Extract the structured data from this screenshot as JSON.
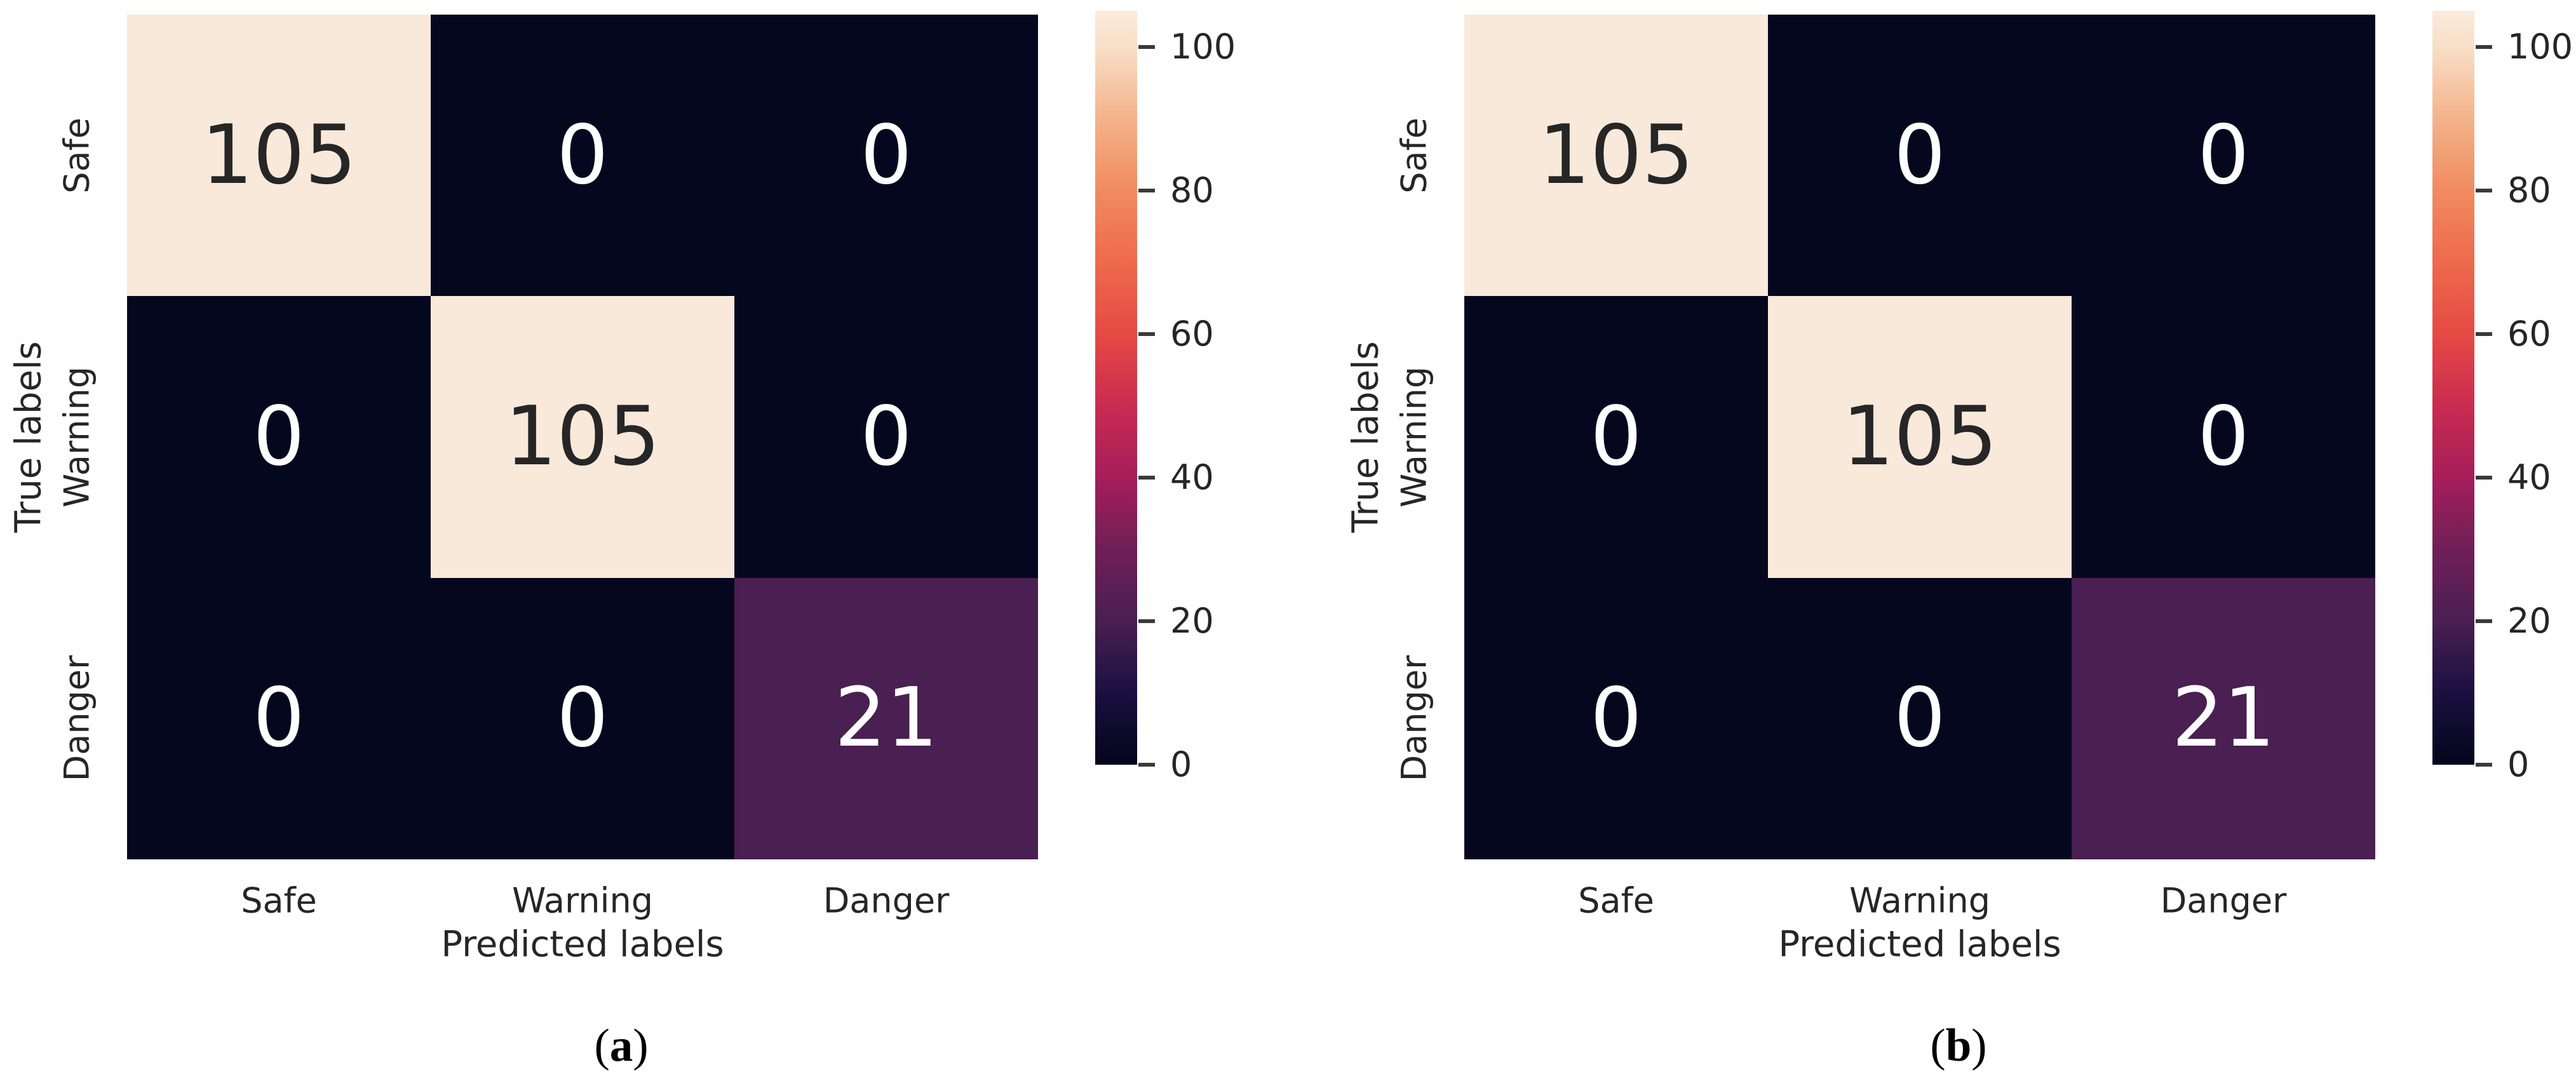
{
  "styles": {
    "background": "#ffffff",
    "label_color": "#262626",
    "tick_mark_color": "#3a3a3a",
    "annot_dark_text": "#262626",
    "annot_light_text": "#ffffff"
  },
  "chart_data": [
    {
      "type": "heatmap",
      "panel": "a",
      "caption": {
        "pre": "(",
        "letter": "a",
        "post": ")"
      },
      "x_categories": [
        "Safe",
        "Warning",
        "Danger"
      ],
      "y_categories": [
        "Safe",
        "Warning",
        "Danger"
      ],
      "xlabel": "Predicted labels",
      "ylabel": "True labels",
      "values": [
        [
          105,
          0,
          0
        ],
        [
          0,
          105,
          0
        ],
        [
          0,
          0,
          21
        ]
      ],
      "vmin": 0,
      "vmax": 105,
      "colorbar_ticks": [
        0,
        20,
        40,
        60,
        80,
        100
      ],
      "colormap": "rocket",
      "cell_colors": [
        [
          "#f8e9da",
          "#05071e",
          "#05071e"
        ],
        [
          "#05071e",
          "#f8e9da",
          "#05071e"
        ],
        [
          "#05071e",
          "#05071e",
          "#4a1f52"
        ]
      ],
      "annot_text_colors": [
        [
          "#262626",
          "#ffffff",
          "#ffffff"
        ],
        [
          "#ffffff",
          "#262626",
          "#ffffff"
        ],
        [
          "#ffffff",
          "#ffffff",
          "#ffffff"
        ]
      ],
      "colormap_stops": [
        {
          "v": 0,
          "hex": "#03051a"
        },
        {
          "v": 10,
          "hex": "#1a1040"
        },
        {
          "v": 20,
          "hex": "#4a1f52"
        },
        {
          "v": 30,
          "hex": "#701f57"
        },
        {
          "v": 40,
          "hex": "#a51e5a"
        },
        {
          "v": 50,
          "hex": "#ca2b51"
        },
        {
          "v": 60,
          "hex": "#e54a43"
        },
        {
          "v": 70,
          "hex": "#ee6a4c"
        },
        {
          "v": 80,
          "hex": "#f18b60"
        },
        {
          "v": 90,
          "hex": "#f4b38a"
        },
        {
          "v": 100,
          "hex": "#f8dfc7"
        },
        {
          "v": 105,
          "hex": "#faebdd"
        }
      ]
    },
    {
      "type": "heatmap",
      "panel": "b",
      "caption": {
        "pre": "(",
        "letter": "b",
        "post": ")"
      },
      "x_categories": [
        "Safe",
        "Warning",
        "Danger"
      ],
      "y_categories": [
        "Safe",
        "Warning",
        "Danger"
      ],
      "xlabel": "Predicted labels",
      "ylabel": "True labels",
      "values": [
        [
          105,
          0,
          0
        ],
        [
          0,
          105,
          0
        ],
        [
          0,
          0,
          21
        ]
      ],
      "vmin": 0,
      "vmax": 105,
      "colorbar_ticks": [
        0,
        20,
        40,
        60,
        80,
        100
      ],
      "colormap": "rocket",
      "cell_colors": [
        [
          "#f8e9da",
          "#05071e",
          "#05071e"
        ],
        [
          "#05071e",
          "#f8e9da",
          "#05071e"
        ],
        [
          "#05071e",
          "#05071e",
          "#4a1f52"
        ]
      ],
      "annot_text_colors": [
        [
          "#262626",
          "#ffffff",
          "#ffffff"
        ],
        [
          "#ffffff",
          "#262626",
          "#ffffff"
        ],
        [
          "#ffffff",
          "#ffffff",
          "#ffffff"
        ]
      ],
      "colormap_stops": [
        {
          "v": 0,
          "hex": "#03051a"
        },
        {
          "v": 10,
          "hex": "#1a1040"
        },
        {
          "v": 20,
          "hex": "#4a1f52"
        },
        {
          "v": 30,
          "hex": "#701f57"
        },
        {
          "v": 40,
          "hex": "#a51e5a"
        },
        {
          "v": 50,
          "hex": "#ca2b51"
        },
        {
          "v": 60,
          "hex": "#e54a43"
        },
        {
          "v": 70,
          "hex": "#ee6a4c"
        },
        {
          "v": 80,
          "hex": "#f18b60"
        },
        {
          "v": 90,
          "hex": "#f4b38a"
        },
        {
          "v": 100,
          "hex": "#f8dfc7"
        },
        {
          "v": 105,
          "hex": "#faebdd"
        }
      ]
    }
  ]
}
